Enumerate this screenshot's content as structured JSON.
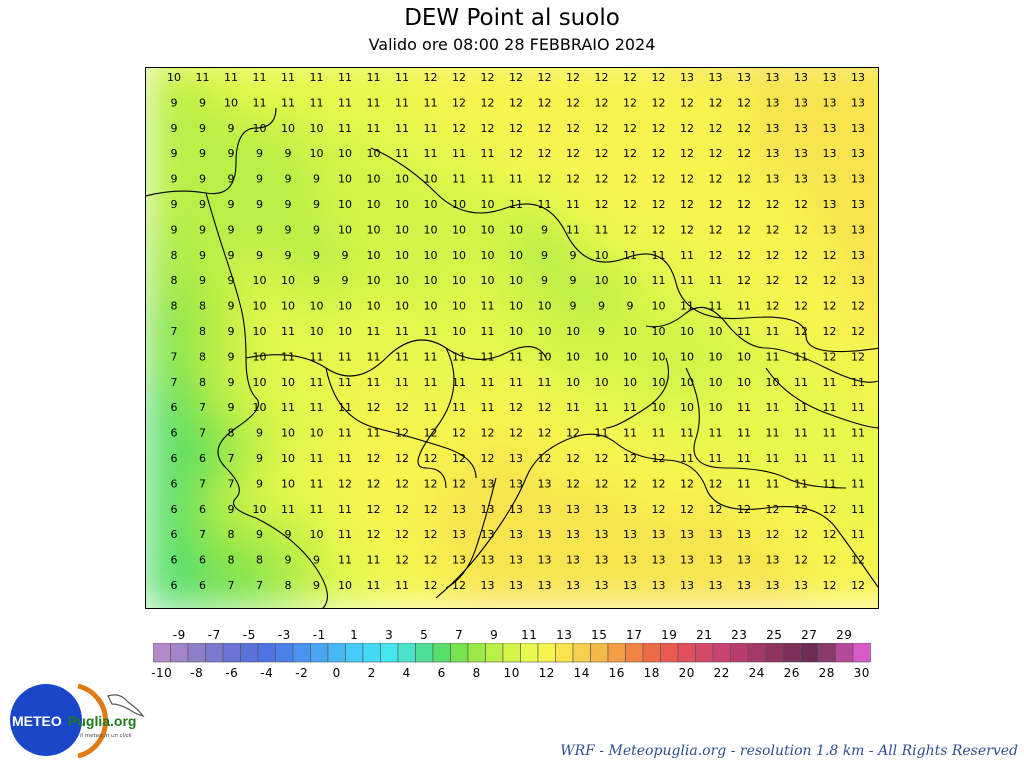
{
  "header": {
    "title": "DEW Point al suolo",
    "subtitle": "Valido ore 08:00 28 FEBBRAIO 2024"
  },
  "map": {
    "variable": "Dew point at ground",
    "unit": "°C",
    "grid": [
      [
        10,
        11,
        11,
        11,
        11,
        11,
        11,
        11,
        11,
        12,
        12,
        12,
        12,
        12,
        12,
        12,
        12,
        12,
        13,
        13,
        13,
        13,
        13,
        13,
        13,
        13
      ],
      [
        9,
        9,
        10,
        11,
        11,
        11,
        11,
        11,
        11,
        11,
        12,
        12,
        12,
        12,
        12,
        12,
        12,
        12,
        12,
        12,
        12,
        13,
        13,
        13,
        13,
        13
      ],
      [
        9,
        9,
        9,
        10,
        10,
        10,
        11,
        11,
        11,
        11,
        12,
        12,
        12,
        12,
        12,
        12,
        12,
        12,
        12,
        12,
        12,
        13,
        13,
        13,
        13,
        13
      ],
      [
        9,
        9,
        9,
        9,
        9,
        10,
        10,
        10,
        11,
        11,
        11,
        11,
        12,
        12,
        12,
        12,
        12,
        12,
        12,
        12,
        12,
        13,
        13,
        13,
        13,
        13
      ],
      [
        9,
        9,
        9,
        9,
        9,
        9,
        10,
        10,
        10,
        10,
        11,
        11,
        11,
        12,
        12,
        12,
        12,
        12,
        12,
        12,
        12,
        13,
        13,
        13,
        13,
        13
      ],
      [
        9,
        9,
        9,
        9,
        9,
        9,
        10,
        10,
        10,
        10,
        10,
        10,
        11,
        11,
        11,
        12,
        12,
        12,
        12,
        12,
        12,
        12,
        12,
        13,
        13,
        13
      ],
      [
        9,
        9,
        9,
        9,
        9,
        9,
        10,
        10,
        10,
        10,
        10,
        10,
        10,
        9,
        11,
        11,
        12,
        12,
        12,
        12,
        12,
        12,
        12,
        13,
        13,
        13
      ],
      [
        8,
        9,
        9,
        9,
        9,
        9,
        9,
        10,
        10,
        10,
        10,
        10,
        10,
        9,
        9,
        10,
        11,
        11,
        11,
        12,
        12,
        12,
        12,
        12,
        13,
        13
      ],
      [
        8,
        9,
        9,
        10,
        10,
        9,
        9,
        10,
        10,
        10,
        10,
        10,
        10,
        9,
        9,
        10,
        10,
        11,
        11,
        11,
        12,
        12,
        12,
        12,
        13,
        13
      ],
      [
        8,
        8,
        9,
        10,
        10,
        10,
        10,
        10,
        10,
        10,
        10,
        11,
        10,
        10,
        9,
        9,
        9,
        10,
        11,
        11,
        11,
        12,
        12,
        12,
        12,
        13
      ],
      [
        7,
        8,
        9,
        10,
        11,
        10,
        10,
        11,
        11,
        11,
        10,
        11,
        10,
        10,
        10,
        9,
        10,
        10,
        10,
        10,
        11,
        11,
        12,
        12,
        12,
        13
      ],
      [
        7,
        8,
        9,
        10,
        11,
        11,
        11,
        11,
        11,
        11,
        11,
        11,
        11,
        10,
        10,
        10,
        10,
        10,
        10,
        10,
        10,
        11,
        11,
        12,
        12,
        12
      ],
      [
        7,
        8,
        9,
        10,
        10,
        11,
        11,
        11,
        11,
        11,
        11,
        11,
        11,
        11,
        10,
        10,
        10,
        10,
        10,
        10,
        10,
        10,
        11,
        11,
        11,
        12
      ],
      [
        6,
        7,
        9,
        10,
        11,
        11,
        11,
        12,
        12,
        11,
        11,
        11,
        12,
        12,
        11,
        11,
        11,
        10,
        10,
        10,
        11,
        11,
        11,
        11,
        11,
        12
      ],
      [
        6,
        7,
        8,
        9,
        10,
        10,
        11,
        11,
        12,
        12,
        12,
        12,
        12,
        12,
        12,
        11,
        11,
        11,
        11,
        11,
        11,
        11,
        11,
        11,
        11,
        11
      ],
      [
        6,
        6,
        7,
        9,
        10,
        11,
        11,
        12,
        12,
        12,
        12,
        12,
        13,
        12,
        12,
        12,
        12,
        12,
        11,
        11,
        11,
        11,
        11,
        11,
        11,
        11
      ],
      [
        6,
        7,
        7,
        9,
        10,
        11,
        12,
        12,
        12,
        12,
        12,
        13,
        13,
        13,
        12,
        12,
        12,
        12,
        12,
        12,
        11,
        11,
        11,
        11,
        11,
        11
      ],
      [
        6,
        6,
        9,
        10,
        11,
        11,
        11,
        12,
        12,
        12,
        13,
        13,
        13,
        13,
        13,
        13,
        13,
        12,
        12,
        12,
        12,
        12,
        12,
        12,
        11,
        11
      ],
      [
        6,
        7,
        8,
        9,
        9,
        10,
        11,
        12,
        12,
        12,
        13,
        13,
        13,
        13,
        13,
        13,
        13,
        13,
        13,
        13,
        13,
        12,
        12,
        12,
        11,
        11
      ],
      [
        6,
        6,
        8,
        8,
        9,
        9,
        11,
        11,
        12,
        12,
        13,
        13,
        13,
        13,
        13,
        13,
        13,
        13,
        13,
        13,
        13,
        13,
        12,
        12,
        12,
        12
      ],
      [
        6,
        6,
        7,
        7,
        8,
        9,
        10,
        11,
        11,
        12,
        12,
        13,
        13,
        13,
        13,
        13,
        13,
        13,
        13,
        13,
        13,
        13,
        13,
        12,
        12,
        12
      ]
    ]
  },
  "legend": {
    "unit": "°C",
    "colors": [
      "#b48bc8",
      "#a285c8",
      "#8f7fcb",
      "#7b78cf",
      "#6a73d4",
      "#5b72da",
      "#4d74e0",
      "#4a82e8",
      "#4a93ef",
      "#4aa6f3",
      "#48b8f5",
      "#46caf7",
      "#44daf6",
      "#45e6ee",
      "#4ae2c8",
      "#4ede98",
      "#58de6a",
      "#78e250",
      "#9be846",
      "#b9ef46",
      "#d4f44a",
      "#e9f84e",
      "#f7f44f",
      "#f7e44f",
      "#f6cf4d",
      "#f5b84a",
      "#f39e46",
      "#f18443",
      "#ef6b45",
      "#ea5a4f",
      "#e0505e",
      "#d54a68",
      "#c84470",
      "#b83d6e",
      "#a53869",
      "#923463",
      "#7d2f5a",
      "#6e2b53",
      "#8a3a6b",
      "#b44a99",
      "#d95bc9"
    ],
    "top_labels": [
      "-9",
      "-7",
      "-5",
      "-3",
      "-1",
      "1",
      "3",
      "5",
      "7",
      "9",
      "11",
      "13",
      "15",
      "17",
      "19",
      "21",
      "23",
      "25",
      "27",
      "29"
    ],
    "bottom_labels": [
      "-10",
      "-8",
      "-6",
      "-4",
      "-2",
      "0",
      "2",
      "4",
      "6",
      "8",
      "10",
      "12",
      "14",
      "16",
      "18",
      "20",
      "22",
      "24",
      "26",
      "28",
      "30"
    ]
  },
  "logo": {
    "text_left": "METEO",
    "text_right": "Puglia.org",
    "tagline": "il meteo in un click"
  },
  "footer": {
    "credit": "WRF - Meteopuglia.org - resolution 1.8 km - All Rights Reserved"
  }
}
